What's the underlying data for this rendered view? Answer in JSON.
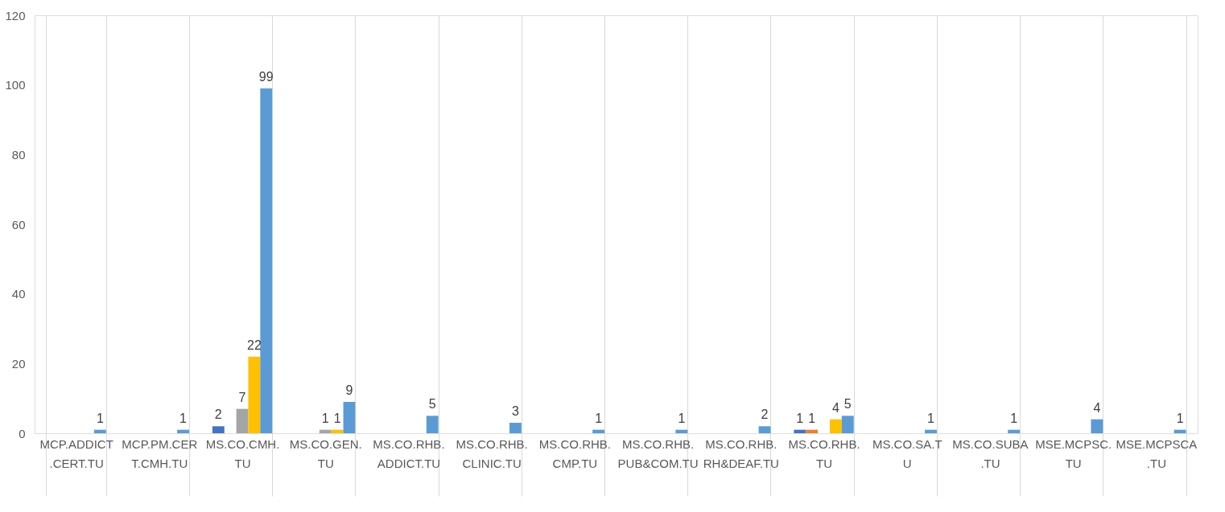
{
  "chart_data": {
    "type": "bar",
    "categories": [
      "MCP.ADDICT.CERT.TU",
      "MCP.PM.CERT.CMH.TU",
      "MS.CO.CMH.TU",
      "MS.CO.GEN.TU",
      "MS.CO.RHB.ADDICT.TU",
      "MS.CO.RHB.CLINIC.TU",
      "MS.CO.RHB.CMP.TU",
      "MS.CO.RHB.PUB&COM.TU",
      "MS.CO.RHB.RH&DEAF.TU",
      "MS.CO.RHB.TU",
      "MS.CO.SA.TU",
      "MS.CO.SUBA.TU",
      "MSE.MCPSC.TU",
      "MSE.MCPSCA.TU"
    ],
    "series": [
      {
        "color": "#4472c4",
        "values": [
          null,
          null,
          2,
          null,
          null,
          null,
          null,
          null,
          null,
          1,
          null,
          null,
          null,
          null
        ]
      },
      {
        "color": "#ed7d31",
        "values": [
          null,
          null,
          null,
          null,
          null,
          null,
          null,
          null,
          null,
          1,
          null,
          null,
          null,
          null
        ]
      },
      {
        "color": "#a5a5a5",
        "values": [
          null,
          null,
          7,
          1,
          null,
          null,
          null,
          null,
          null,
          null,
          null,
          null,
          null,
          null
        ]
      },
      {
        "color": "#ffc000",
        "values": [
          null,
          null,
          22,
          1,
          null,
          null,
          null,
          null,
          null,
          4,
          null,
          null,
          null,
          null
        ]
      },
      {
        "color": "#5b9bd5",
        "values": [
          1,
          1,
          99,
          9,
          5,
          3,
          1,
          1,
          2,
          5,
          1,
          1,
          4,
          1
        ]
      }
    ],
    "ylim": [
      0,
      120
    ],
    "yticks": [
      0,
      20,
      40,
      60,
      80,
      100,
      120
    ],
    "grid": "x",
    "data_labels": true,
    "legend": false
  }
}
